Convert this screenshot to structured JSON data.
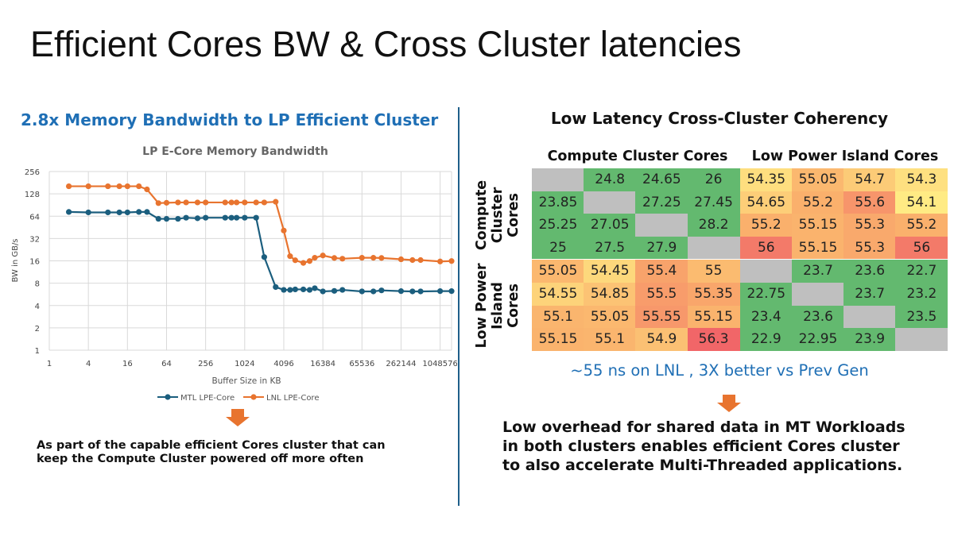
{
  "title": "Efficient Cores BW & Cross Cluster latencies",
  "left": {
    "subtitle": "2.8x Memory Bandwidth to LP Efficient Cluster",
    "note_lines": [
      "As part of the capable efficient Cores cluster that can",
      "keep the Compute Cluster powered off more often"
    ]
  },
  "right": {
    "title": "Low Latency Cross-Cluster Coherency",
    "latency_note": "~55 ns on LNL , 3X better vs Prev Gen",
    "note_lines": [
      "Low overhead for shared data in MT Workloads",
      "in both clusters enables efficient Cores cluster",
      "to also accelerate Multi-Threaded applications."
    ]
  },
  "colors": {
    "accent_blue": "#1f6fb5",
    "arrow_orange": "#e8742f",
    "divider": "#1f5f8a"
  },
  "chart_data": [
    {
      "type": "line",
      "title": "LP E-Core Memory Bandwidth",
      "xlabel": "Buffer Size in KB",
      "ylabel": "BW in GB/s",
      "xscale": "log2",
      "yscale": "log2",
      "xlim": [
        1,
        1572864
      ],
      "ylim": [
        1,
        256
      ],
      "xticks": [
        "1",
        "4",
        "16",
        "64",
        "256",
        "1024",
        "4096",
        "16384",
        "65536",
        "262144",
        "1048576"
      ],
      "yticks": [
        "1",
        "2",
        "4",
        "8",
        "16",
        "32",
        "64",
        "128",
        "256"
      ],
      "grid": true,
      "legend": "bottom",
      "x": [
        2,
        4,
        8,
        12,
        16,
        24,
        32,
        48,
        64,
        96,
        128,
        192,
        256,
        512,
        640,
        768,
        1024,
        1536,
        2048,
        3072,
        4096,
        5120,
        6144,
        8192,
        10240,
        12288,
        16384,
        24576,
        32768,
        65536,
        98304,
        131072,
        262144,
        393216,
        524288,
        1048576,
        1572864
      ],
      "series": [
        {
          "name": "MTL LPE-Core",
          "color": "#1b5e7e",
          "values": [
            73,
            72,
            72,
            72,
            72,
            73,
            73,
            59,
            59,
            59,
            61,
            60,
            61,
            61,
            61,
            61,
            61,
            61,
            18,
            7.1,
            6.5,
            6.5,
            6.6,
            6.6,
            6.5,
            6.85,
            6.2,
            6.3,
            6.5,
            6.2,
            6.2,
            6.4,
            6.25,
            6.2,
            6.2,
            6.25,
            6.25
          ]
        },
        {
          "name": "LNL LPE-Core",
          "color": "#e8742f",
          "values": [
            162,
            162,
            162,
            162,
            162,
            162,
            147,
            96,
            97,
            98,
            98,
            98,
            98,
            98,
            98,
            98,
            98,
            98,
            98,
            100,
            41,
            18.5,
            16.3,
            15,
            15.9,
            17.6,
            18.9,
            17.5,
            17.1,
            17.6,
            17.6,
            17.5,
            16.8,
            16.4,
            16.4,
            15.7,
            15.9
          ]
        }
      ]
    },
    {
      "type": "heatmap",
      "column_groups": [
        "Compute Cluster Cores",
        "Low Power Island Cores"
      ],
      "row_groups": [
        "Compute\nCluster\nCores",
        "Low Power\nIsland\nCores"
      ],
      "values": [
        [
          null,
          24.8,
          24.65,
          26,
          54.35,
          55.05,
          54.7,
          54.3
        ],
        [
          23.85,
          null,
          27.25,
          27.45,
          54.65,
          55.2,
          55.6,
          54.1
        ],
        [
          25.25,
          27.05,
          null,
          28.2,
          55.2,
          55.15,
          55.3,
          55.2
        ],
        [
          25,
          27.5,
          27.9,
          null,
          56,
          55.15,
          55.3,
          56
        ],
        [
          55.05,
          54.45,
          55.4,
          55,
          null,
          23.7,
          23.6,
          22.7
        ],
        [
          54.55,
          54.85,
          55.5,
          55.35,
          22.75,
          null,
          23.7,
          23.2
        ],
        [
          55.1,
          55.05,
          55.55,
          55.15,
          23.4,
          23.6,
          null,
          23.5
        ],
        [
          55.15,
          55.1,
          54.9,
          56.3,
          22.9,
          22.95,
          23.9,
          null
        ]
      ],
      "unit": "ns"
    }
  ]
}
